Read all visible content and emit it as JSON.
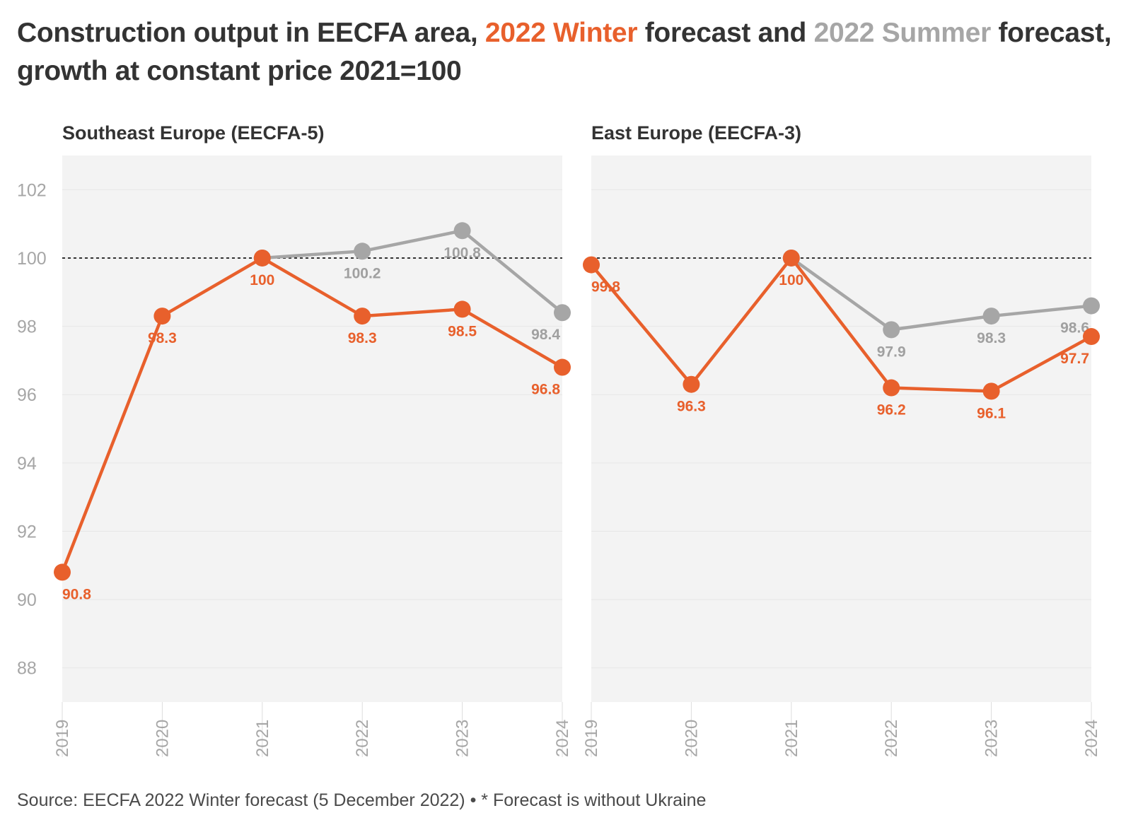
{
  "title": {
    "part1": "Construction output in EECFA area, ",
    "winter": "2022 Winter",
    "part2": " forecast and ",
    "summer": "2022 Summer",
    "part3": " forecast, growth at constant price 2021=100"
  },
  "source": "Source: EECFA 2022 Winter forecast (5 December 2022) • * Forecast is without Ukraine",
  "colors": {
    "winter": "#e8602c",
    "summer": "#a6a6a6",
    "panel_bg": "#f3f3f3",
    "reference": "#333333"
  },
  "chart_data": [
    {
      "type": "line",
      "title": "Southeast Europe (EECFA-5)",
      "x": [
        "2019",
        "2020",
        "2021",
        "2022",
        "2023",
        "2024"
      ],
      "yticks": [
        88,
        90,
        92,
        94,
        96,
        98,
        100,
        102
      ],
      "ylim": [
        87,
        103
      ],
      "reference_line": 100,
      "series": [
        {
          "name": "2022 Summer forecast",
          "x": [
            "2021",
            "2022",
            "2023",
            "2024"
          ],
          "values": [
            100,
            100.2,
            100.8,
            98.4
          ],
          "labels": [
            "",
            "100.2",
            "100.8",
            "98.4"
          ]
        },
        {
          "name": "2022 Winter forecast",
          "x": [
            "2019",
            "2020",
            "2021",
            "2022",
            "2023",
            "2024"
          ],
          "values": [
            90.8,
            98.3,
            100,
            98.3,
            98.5,
            96.8
          ],
          "labels": [
            "90.8",
            "98.3",
            "100",
            "98.3",
            "98.5",
            "96.8"
          ]
        }
      ]
    },
    {
      "type": "line",
      "title": "East Europe (EECFA-3)",
      "x": [
        "2019",
        "2020",
        "2021",
        "2022",
        "2023",
        "2024"
      ],
      "yticks": [],
      "ylim": [
        87,
        103
      ],
      "reference_line": 100,
      "series": [
        {
          "name": "2022 Summer forecast",
          "x": [
            "2021",
            "2022",
            "2023",
            "2024"
          ],
          "values": [
            100,
            97.9,
            98.3,
            98.6
          ],
          "labels": [
            "",
            "97.9",
            "98.3",
            "98.6"
          ]
        },
        {
          "name": "2022 Winter forecast",
          "x": [
            "2019",
            "2020",
            "2021",
            "2022",
            "2023",
            "2024"
          ],
          "values": [
            99.8,
            96.3,
            100,
            96.2,
            96.1,
            97.7
          ],
          "labels": [
            "99.8",
            "96.3",
            "100",
            "96.2",
            "96.1",
            "97.7"
          ]
        }
      ]
    }
  ]
}
